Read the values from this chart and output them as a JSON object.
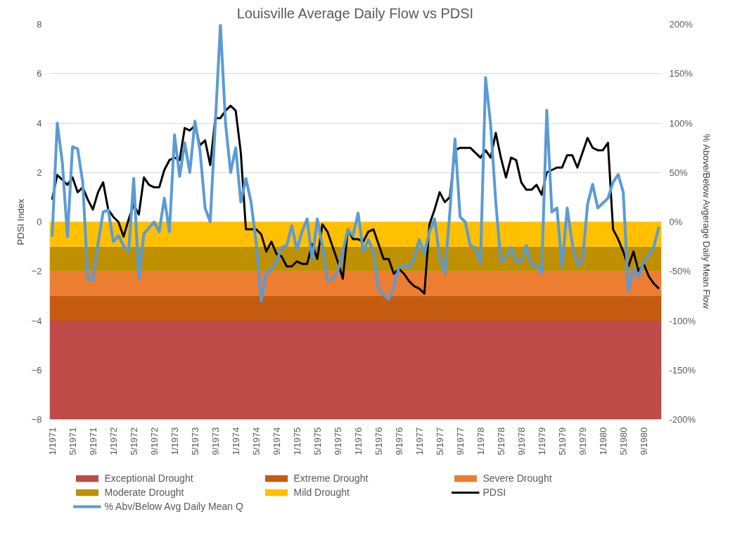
{
  "chart_data": {
    "type": "line",
    "title": "Louisville Average Daily Flow vs PDSI",
    "ylabel": "PDSI Index",
    "y2label": "% Above/Below Avgerage Daily Mean Flow",
    "categories": [
      "1/1971",
      null,
      null,
      null,
      "5/1971",
      null,
      null,
      null,
      "9/1971",
      null,
      null,
      null,
      "1/1972",
      null,
      null,
      null,
      "5/1972",
      null,
      null,
      null,
      "9/1972",
      null,
      null,
      null,
      "1/1973",
      null,
      null,
      null,
      "5/1973",
      null,
      null,
      null,
      "9/1973",
      null,
      null,
      null,
      "1/1974",
      null,
      null,
      null,
      "5/1974",
      null,
      null,
      null,
      "9/1974",
      null,
      null,
      null,
      "1/1975",
      null,
      null,
      null,
      "5/1975",
      null,
      null,
      null,
      "9/1975",
      null,
      null,
      null,
      "1/1976",
      null,
      null,
      null,
      "5/1976",
      null,
      null,
      null,
      "9/1976",
      null,
      null,
      null,
      "1/1977",
      null,
      null,
      null,
      "5/1977",
      null,
      null,
      null,
      "9/1977",
      null,
      null,
      null,
      "1/1978",
      null,
      null,
      null,
      "5/1978",
      null,
      null,
      null,
      "9/1978",
      null,
      null,
      null,
      "1/1979",
      null,
      null,
      null,
      "5/1979",
      null,
      null,
      null,
      "9/1979",
      null,
      null,
      null,
      "1/1980",
      null,
      null,
      null,
      "5/1980",
      null,
      null,
      null,
      "9/1980",
      null,
      null,
      null
    ],
    "series": [
      {
        "name": "PDSI",
        "color": "#000000",
        "values": [
          0.9,
          1.9,
          1.7,
          1.5,
          1.8,
          1.2,
          1.4,
          0.9,
          0.5,
          1.2,
          1.6,
          0.5,
          0.2,
          0.0,
          -0.6,
          0.1,
          0.7,
          0.3,
          1.8,
          1.5,
          1.4,
          1.4,
          2.1,
          2.5,
          2.6,
          2.5,
          3.8,
          3.7,
          3.9,
          3.1,
          3.3,
          2.3,
          4.2,
          4.2,
          4.5,
          4.7,
          4.5,
          2.8,
          -0.3,
          -0.3,
          -0.3,
          -0.5,
          -1.2,
          -0.8,
          -1.3,
          -1.4,
          -1.8,
          -1.8,
          -1.6,
          -1.7,
          -1.7,
          -0.9,
          -1.5,
          -0.1,
          -0.4,
          -1.0,
          -1.6,
          -2.3,
          -0.3,
          -0.7,
          -0.7,
          -0.8,
          -0.4,
          -0.3,
          -0.9,
          -1.5,
          -1.5,
          -2.1,
          -1.9,
          -2.1,
          -2.4,
          -2.6,
          -2.7,
          -2.9,
          -0.1,
          0.5,
          1.2,
          0.8,
          1.0,
          2.9,
          3.0,
          3.0,
          3.0,
          2.8,
          2.6,
          2.9,
          2.6,
          3.6,
          2.6,
          1.8,
          2.6,
          2.5,
          1.6,
          1.3,
          1.3,
          1.5,
          1.1,
          2.0,
          2.1,
          2.2,
          2.2,
          2.7,
          2.7,
          2.2,
          2.8,
          3.4,
          3.0,
          2.9,
          2.9,
          3.2,
          -0.3,
          -0.7,
          -1.2,
          -1.8,
          -1.2,
          -2.0,
          -1.7,
          -2.2,
          -2.5,
          -2.7
        ]
      },
      {
        "name": "% Abv/Below Avg Daily Mean Q",
        "color": "#5b9bd5",
        "axis": "y2",
        "values": [
          -15,
          100,
          60,
          -15,
          76,
          74,
          40,
          -58,
          -59,
          -22,
          10,
          12,
          -20,
          -14,
          -24,
          -30,
          44,
          -58,
          -12,
          -6,
          0,
          -10,
          24,
          -10,
          88,
          46,
          80,
          50,
          102,
          72,
          14,
          0,
          100,
          200,
          100,
          50,
          75,
          20,
          44,
          20,
          -20,
          -80,
          -52,
          -48,
          -40,
          -26,
          -24,
          -4,
          -28,
          -10,
          3,
          -38,
          3,
          -24,
          -60,
          -58,
          -50,
          -30,
          -8,
          -14,
          9,
          -30,
          -18,
          -30,
          -68,
          -74,
          -78,
          -66,
          -46,
          -44,
          -46,
          -36,
          -18,
          -32,
          -10,
          3,
          -36,
          -52,
          10,
          84,
          5,
          0,
          -24,
          -26,
          -42,
          146,
          98,
          20,
          -40,
          -36,
          -26,
          -40,
          -40,
          -24,
          -44,
          -44,
          -52,
          113,
          10,
          14,
          -46,
          14,
          -22,
          -44,
          -40,
          18,
          38,
          14,
          19,
          24,
          40,
          48,
          30,
          -70,
          -48,
          -56,
          -40,
          -34,
          -25,
          -5
        ]
      }
    ],
    "bands": [
      {
        "axis": "y",
        "from": -8,
        "to": -4,
        "label": "Exceptional Drought",
        "color": "#be4b48"
      },
      {
        "axis": "y",
        "from": -4,
        "to": -3,
        "label": "Extreme Drought",
        "color": "#c55a11"
      },
      {
        "axis": "y",
        "from": -3,
        "to": -2,
        "label": "Severe Drought",
        "color": "#ed7d31"
      },
      {
        "axis": "y",
        "from": -2,
        "to": -1,
        "label": "Moderate Drought",
        "color": "#bf9000"
      },
      {
        "axis": "y",
        "from": -1,
        "to": 0,
        "label": "Mild Drought",
        "color": "#ffc000"
      }
    ],
    "ylim": [
      -8,
      8
    ],
    "yticks": [
      -8,
      -6,
      -4,
      -2,
      0,
      2,
      4,
      6,
      8
    ],
    "y2lim": [
      -200,
      200
    ],
    "y2ticks": [
      {
        "value": -200,
        "label": "-200%"
      },
      {
        "value": -150,
        "label": "-150%"
      },
      {
        "value": -100,
        "label": "-100%"
      },
      {
        "value": -50,
        "label": "-50%"
      },
      {
        "value": 0,
        "label": "0%"
      },
      {
        "value": 50,
        "label": "50%"
      },
      {
        "value": 100,
        "label": "100%"
      },
      {
        "value": 150,
        "label": "150%"
      },
      {
        "value": 200,
        "label": "200%"
      }
    ],
    "grid": "y",
    "legend": "bottom",
    "marker": "none",
    "line_style": "solid"
  }
}
